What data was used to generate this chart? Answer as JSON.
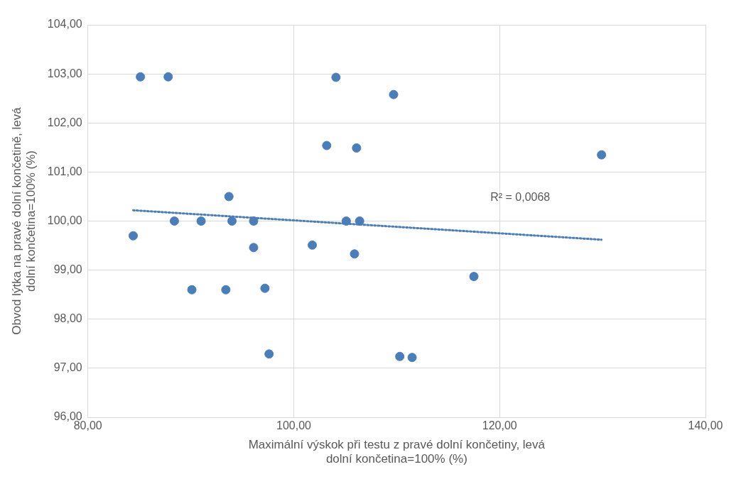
{
  "chart_data": {
    "type": "scatter",
    "xlabel": "Maximální výskok při testu z pravé dolní končetiny, levá dolní končetina=100% (%)",
    "ylabel": "Obvod lýtka na pravé dolní končetině, levá dolní končetina=100% (%)",
    "xlim": [
      80,
      140
    ],
    "ylim": [
      96,
      104
    ],
    "xticks": [
      {
        "value": 80,
        "label": "80,00"
      },
      {
        "value": 100,
        "label": "100,00"
      },
      {
        "value": 120,
        "label": "120,00"
      },
      {
        "value": 140,
        "label": "140,00"
      }
    ],
    "yticks": [
      {
        "value": 96,
        "label": "96,00"
      },
      {
        "value": 97,
        "label": "97,00"
      },
      {
        "value": 98,
        "label": "98,00"
      },
      {
        "value": 99,
        "label": "99,00"
      },
      {
        "value": 100,
        "label": "100,00"
      },
      {
        "value": 101,
        "label": "101,00"
      },
      {
        "value": 102,
        "label": "102,00"
      },
      {
        "value": 103,
        "label": "103,00"
      },
      {
        "value": 104,
        "label": "104,00"
      }
    ],
    "grid": true,
    "legend": false,
    "marker": "circle",
    "series": [
      {
        "type": "scatter",
        "color": "#4a7ebb",
        "x": [
          84.4,
          85.1,
          87.8,
          88.4,
          90.1,
          91.0,
          93.4,
          93.7,
          94.0,
          96.1,
          96.1,
          97.2,
          97.6,
          101.8,
          103.2,
          104.1,
          105.1,
          106.1,
          105.9,
          106.4,
          109.7,
          110.3,
          111.5,
          117.5,
          129.9
        ],
        "values": [
          99.7,
          102.94,
          102.94,
          100.0,
          98.6,
          100.0,
          98.6,
          100.5,
          100.0,
          100.0,
          99.46,
          98.63,
          97.29,
          99.51,
          101.54,
          102.93,
          100.0,
          101.49,
          99.33,
          100.0,
          102.58,
          97.24,
          97.22,
          98.87,
          101.35
        ]
      },
      {
        "type": "line",
        "color": "#4a7ebb",
        "line_style": "dotted",
        "marker": "none",
        "x": [
          84.4,
          129.9
        ],
        "values": [
          100.22,
          99.62
        ]
      }
    ],
    "annotations": [
      "R² = 0,0068"
    ]
  }
}
